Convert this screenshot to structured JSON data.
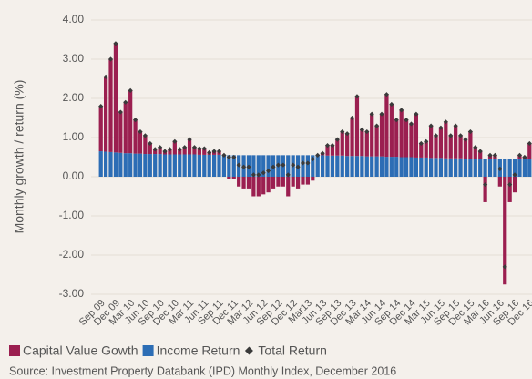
{
  "chart_data": {
    "type": "bar",
    "stacked": true,
    "y_axis_label": "Monthly growth / return (%)",
    "source": "Source: Investment Property Databank (IPD) Monthly Index, December 2016",
    "categories": [
      "Sep 09",
      null,
      null,
      "Dec 09",
      null,
      null,
      "Mar 10",
      null,
      null,
      "Jun 10",
      null,
      null,
      "Sep 10",
      null,
      null,
      "Dec 10",
      null,
      null,
      "Mar 11",
      null,
      null,
      "Jun 11",
      null,
      null,
      "Sep 11",
      null,
      null,
      "Dec 11",
      null,
      null,
      "Mar 12",
      null,
      null,
      "Jun 12",
      null,
      null,
      "Sep 12",
      null,
      null,
      "Dec 12",
      null,
      null,
      "Mar13",
      null,
      null,
      "Jun 13",
      null,
      null,
      "Sep 13",
      null,
      null,
      "Dec 13",
      null,
      null,
      "Mar 14",
      null,
      null,
      "Jun 14",
      null,
      null,
      "Sep 14",
      null,
      null,
      "Dec 14",
      null,
      null,
      "Mar 15",
      null,
      null,
      "Jun 15",
      null,
      null,
      "Sep 15",
      null,
      null,
      "Dec 15",
      null,
      null,
      "Mar 16",
      null,
      null,
      "Jun 16",
      null,
      null,
      "Sep 16",
      null,
      null,
      "Dec 16"
    ],
    "series": [
      {
        "name": "Capital Value Gowth",
        "color": "#9b1f50",
        "values": [
          1.15,
          1.91,
          2.37,
          2.78,
          1.04,
          1.3,
          1.6,
          0.86,
          0.56,
          0.47,
          0.27,
          0.12,
          0.17,
          0.08,
          0.13,
          0.33,
          0.13,
          0.18,
          0.38,
          0.18,
          0.16,
          0.16,
          0.06,
          0.09,
          0.09,
          0,
          -0.05,
          -0.05,
          -0.25,
          -0.3,
          -0.3,
          -0.5,
          -0.5,
          -0.45,
          -0.4,
          -0.3,
          -0.25,
          -0.25,
          -0.5,
          -0.25,
          -0.3,
          -0.2,
          -0.2,
          -0.1,
          0,
          0.05,
          0.26,
          0.26,
          0.41,
          0.61,
          0.57,
          0.97,
          1.52,
          0.67,
          0.63,
          1.08,
          0.78,
          1.08,
          1.59,
          1.34,
          0.94,
          1.2,
          0.95,
          0.85,
          1.11,
          0.36,
          0.41,
          0.82,
          0.57,
          0.77,
          0.93,
          0.58,
          0.83,
          0.58,
          0.49,
          0.69,
          0.29,
          0.19,
          -0.65,
          0.1,
          0.1,
          -0.25,
          -2.75,
          -0.65,
          -0.4,
          0.1,
          0.05,
          0.4
        ]
      },
      {
        "name": "Income Return",
        "color": "#2c6db5",
        "values": [
          0.65,
          0.64,
          0.63,
          0.62,
          0.61,
          0.6,
          0.6,
          0.59,
          0.59,
          0.58,
          0.58,
          0.58,
          0.58,
          0.57,
          0.57,
          0.57,
          0.57,
          0.57,
          0.57,
          0.57,
          0.56,
          0.56,
          0.56,
          0.56,
          0.56,
          0.55,
          0.55,
          0.55,
          0.55,
          0.55,
          0.55,
          0.55,
          0.55,
          0.55,
          0.55,
          0.55,
          0.55,
          0.55,
          0.55,
          0.55,
          0.55,
          0.55,
          0.55,
          0.55,
          0.55,
          0.55,
          0.54,
          0.54,
          0.54,
          0.54,
          0.53,
          0.53,
          0.53,
          0.53,
          0.52,
          0.52,
          0.52,
          0.52,
          0.51,
          0.51,
          0.51,
          0.5,
          0.5,
          0.5,
          0.49,
          0.49,
          0.49,
          0.48,
          0.48,
          0.48,
          0.47,
          0.47,
          0.47,
          0.47,
          0.46,
          0.46,
          0.46,
          0.46,
          0.45,
          0.45,
          0.45,
          0.45,
          0.45,
          0.45,
          0.45,
          0.45,
          0.45,
          0.45
        ]
      },
      {
        "name": "Total Return",
        "color": "#3a3a3a",
        "type": "scatter",
        "values": [
          1.8,
          2.55,
          3.0,
          3.4,
          1.65,
          1.9,
          2.2,
          1.45,
          1.15,
          1.05,
          0.85,
          0.7,
          0.75,
          0.65,
          0.7,
          0.9,
          0.7,
          0.75,
          0.95,
          0.75,
          0.72,
          0.72,
          0.62,
          0.65,
          0.65,
          0.55,
          0.5,
          0.5,
          0.3,
          0.25,
          0.25,
          0.05,
          0.05,
          0.1,
          0.15,
          0.25,
          0.3,
          0.3,
          0.05,
          0.3,
          0.25,
          0.35,
          0.35,
          0.45,
          0.55,
          0.6,
          0.8,
          0.8,
          0.95,
          1.15,
          1.1,
          1.5,
          2.05,
          1.2,
          1.15,
          1.6,
          1.3,
          1.6,
          2.1,
          1.85,
          1.45,
          1.7,
          1.45,
          1.35,
          1.6,
          0.85,
          0.9,
          1.3,
          1.05,
          1.25,
          1.4,
          1.05,
          1.3,
          1.05,
          0.95,
          1.15,
          0.75,
          0.65,
          -0.2,
          0.55,
          0.55,
          0.2,
          -2.3,
          -0.2,
          0.05,
          0.55,
          0.5,
          0.85
        ]
      }
    ],
    "ylim": [
      -3,
      4
    ],
    "yticks": [
      {
        "value": -3,
        "label": "-3.00"
      },
      {
        "value": -2,
        "label": "-2.00"
      },
      {
        "value": -1,
        "label": "-1.00"
      },
      {
        "value": 0,
        "label": "0.00"
      },
      {
        "value": 1,
        "label": "1.00"
      },
      {
        "value": 2,
        "label": "2.00"
      },
      {
        "value": 3,
        "label": "3.00"
      },
      {
        "value": 4,
        "label": "4.00"
      }
    ],
    "grid": true
  }
}
